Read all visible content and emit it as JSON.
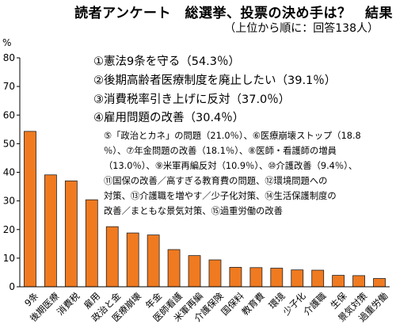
{
  "title": "読者アンケート　総選挙、投票の決め手は？　結果",
  "subtitle": "（上位から順に：回答138人）",
  "chart_data": {
    "type": "bar",
    "ylabel": "%",
    "ylim": [
      0,
      80
    ],
    "yticks": [
      0,
      10,
      20,
      30,
      40,
      50,
      60,
      70,
      80
    ],
    "categories": [
      "9条",
      "後期医療",
      "消費税",
      "雇用",
      "政治と金",
      "医療崩壊",
      "年金",
      "医師看護",
      "米軍再編",
      "介護保険",
      "国保料",
      "教育費",
      "環境",
      "少子化",
      "介護職",
      "生保",
      "景気対策",
      "過重労働"
    ],
    "values": [
      54.3,
      39.1,
      37.0,
      30.4,
      21.0,
      18.8,
      18.1,
      13.0,
      10.9,
      9.4,
      6.8,
      6.7,
      6.5,
      5.9,
      5.8,
      4.0,
      3.9,
      2.9
    ],
    "bar_color": "#f07a20",
    "grid": false,
    "notes_top": [
      "①憲法9条を守る（54.3％）",
      "②後期高齢者医療制度を廃止したい（39.1％）",
      "③消費税率引き上げに反対（37.0％）",
      "④雇用問題の改善（30.4％）"
    ],
    "notes_box": [
      "⑤「政治とカネ」の問題（21.0％）、⑥医療崩壊ストップ（18.8",
      "％）、⑦年金問題の改善（18.1％）、⑧医師・看護師の増員",
      "（13.0％）、⑨米軍再編反対（10.9％）、⑩介護改善（9.4％）、",
      "⑪国保の改善／高すぎる教育費の問題、⑫環境問題への",
      "対策、⑬介護職を増やす／少子化対策、⑭生活保護制度の",
      "改善／まともな景気対策、⑮過重労働の改善"
    ]
  }
}
